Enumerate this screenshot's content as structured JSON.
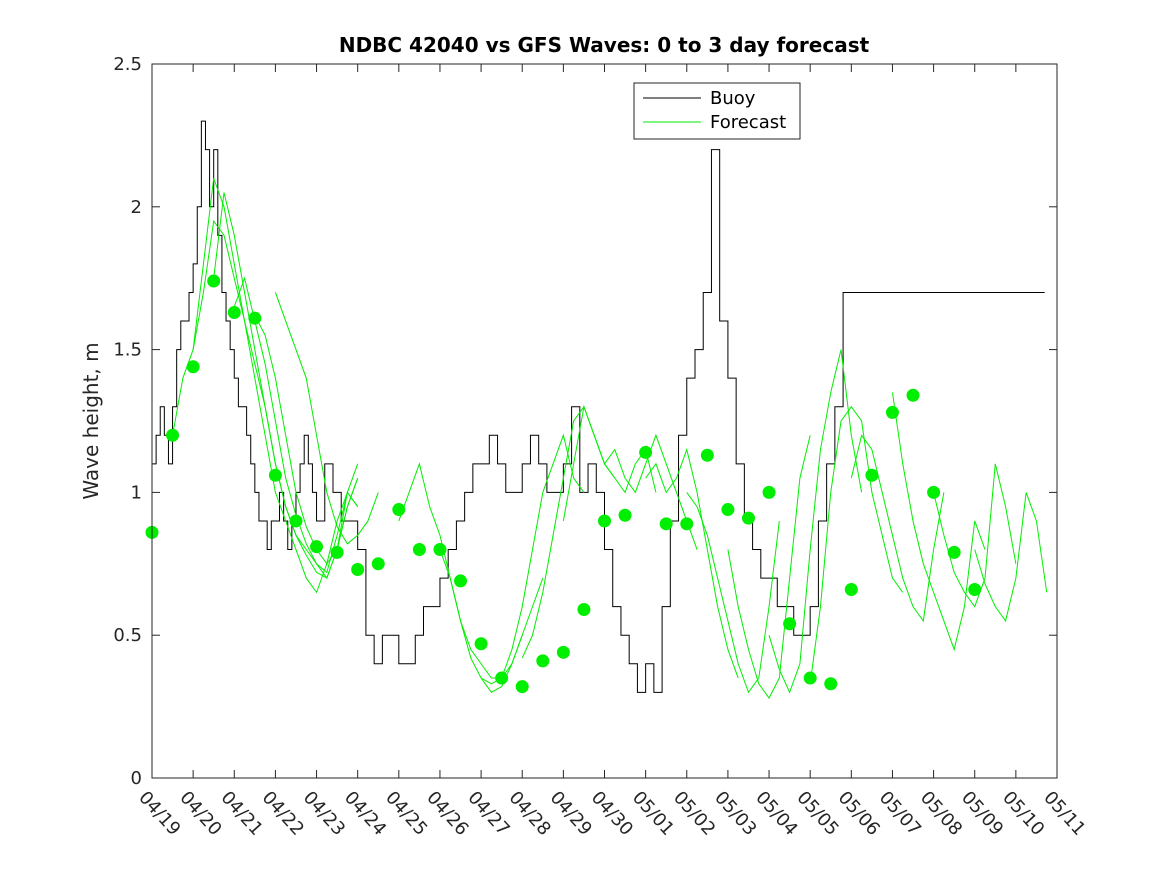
{
  "chart_data": {
    "type": "line",
    "title": "NDBC 42040 vs GFS Waves: 0 to 3 day forecast",
    "xlabel": "",
    "ylabel": "Wave height, m",
    "ylim": [
      0,
      2.5
    ],
    "xlim": [
      "04/19",
      "05/11"
    ],
    "x_ticks": [
      "04/19",
      "04/20",
      "04/21",
      "04/22",
      "04/23",
      "04/24",
      "04/25",
      "04/26",
      "04/27",
      "04/28",
      "04/29",
      "04/30",
      "05/01",
      "05/02",
      "05/03",
      "05/04",
      "05/05",
      "05/06",
      "05/07",
      "05/08",
      "05/09",
      "05/10",
      "05/11"
    ],
    "y_ticks": [
      "0",
      "0.5",
      "1",
      "1.5",
      "2",
      "2.5"
    ],
    "grid": false,
    "legend_position": "top-center",
    "colors": {
      "buoy": "#000000",
      "forecast": "#00ee00",
      "analysis_points": "#00ee00"
    },
    "series": [
      {
        "name": "Buoy",
        "x_days": [
          0,
          0.1,
          0.2,
          0.3,
          0.4,
          0.5,
          0.6,
          0.7,
          0.8,
          0.9,
          1.0,
          1.1,
          1.2,
          1.3,
          1.4,
          1.5,
          1.6,
          1.7,
          1.8,
          1.9,
          2.0,
          2.1,
          2.2,
          2.3,
          2.4,
          2.5,
          2.6,
          2.7,
          2.8,
          2.9,
          3.0,
          3.1,
          3.2,
          3.3,
          3.4,
          3.5,
          3.6,
          3.7,
          3.8,
          3.9,
          4.0,
          4.2,
          4.4,
          4.6,
          4.8,
          5.0,
          5.2,
          5.4,
          5.6,
          5.8,
          6.0,
          6.2,
          6.4,
          6.6,
          6.8,
          7.0,
          7.2,
          7.4,
          7.6,
          7.8,
          8.0,
          8.2,
          8.4,
          8.6,
          8.8,
          9.0,
          9.2,
          9.4,
          9.6,
          9.8,
          10.0,
          10.2,
          10.4,
          10.6,
          10.8,
          11.0,
          11.2,
          11.4,
          11.6,
          11.8,
          12.0,
          12.2,
          12.4,
          12.6,
          12.8,
          13.0,
          13.2,
          13.4,
          13.6,
          13.8,
          14.0,
          14.2,
          14.4,
          14.6,
          14.8,
          15.0,
          15.2,
          15.4,
          15.6,
          15.8,
          16.0,
          16.2,
          16.4,
          16.6,
          16.8,
          17.0,
          17.2,
          17.4,
          17.6,
          17.8,
          18.0,
          18.2,
          18.4,
          18.6,
          18.7,
          18.8,
          18.9,
          19.0,
          19.1,
          19.2,
          19.4,
          19.6,
          19.8,
          20.0,
          20.2,
          20.4,
          20.6,
          20.8,
          21.0,
          21.2,
          21.4,
          21.6,
          21.7
        ],
        "values": [
          1.1,
          1.2,
          1.3,
          1.2,
          1.1,
          1.3,
          1.5,
          1.6,
          1.6,
          1.7,
          1.8,
          2.0,
          2.3,
          2.2,
          2.0,
          2.2,
          1.9,
          1.7,
          1.6,
          1.5,
          1.4,
          1.3,
          1.3,
          1.2,
          1.1,
          1.0,
          0.9,
          0.9,
          0.8,
          0.9,
          0.9,
          1.0,
          0.9,
          0.8,
          0.9,
          1.0,
          1.1,
          1.2,
          1.1,
          1.0,
          0.9,
          1.1,
          1.0,
          0.9,
          0.9,
          0.8,
          0.5,
          0.4,
          0.5,
          0.5,
          0.4,
          0.4,
          0.5,
          0.6,
          0.6,
          0.7,
          0.8,
          0.9,
          1.0,
          1.1,
          1.1,
          1.2,
          1.1,
          1.0,
          1.0,
          1.1,
          1.2,
          1.1,
          1.0,
          1.0,
          1.1,
          1.3,
          1.0,
          1.1,
          1.0,
          0.8,
          0.6,
          0.5,
          0.4,
          0.3,
          0.4,
          0.3,
          0.6,
          0.9,
          1.2,
          1.4,
          1.5,
          1.7,
          2.2,
          1.6,
          1.4,
          1.1,
          0.9,
          0.8,
          0.7,
          0.7,
          0.6,
          0.6,
          0.5,
          0.5,
          0.6,
          0.9,
          1.1,
          1.3,
          1.7,
          1.7,
          1.7,
          1.7,
          1.7,
          1.7,
          1.7,
          1.7,
          1.7,
          1.7,
          1.7,
          1.7,
          1.7,
          1.7,
          1.7,
          1.7,
          1.7,
          1.7,
          1.7,
          1.7,
          1.7,
          1.7,
          1.7,
          1.7,
          1.7,
          1.7,
          1.7,
          1.7,
          1.7
        ]
      }
    ],
    "forecast_runs": [
      {
        "name": "Forecast",
        "start_day": 0.5,
        "values": [
          1.2,
          1.4,
          1.5,
          1.7,
          1.95,
          1.9,
          1.75,
          1.6,
          1.45,
          1.3,
          1.1,
          0.95,
          0.85,
          0.8,
          0.75,
          0.7,
          0.8,
          0.95,
          1.05
        ]
      },
      {
        "start_day": 1.0,
        "values": [
          1.5,
          1.8,
          2.1,
          2.0,
          1.8,
          1.6,
          1.4,
          1.2,
          1.0,
          0.9,
          0.8,
          0.7,
          0.65,
          0.75,
          0.9,
          1.0,
          0.95
        ]
      },
      {
        "start_day": 1.5,
        "values": [
          1.75,
          2.05,
          1.9,
          1.7,
          1.5,
          1.3,
          1.1,
          0.95,
          0.85,
          0.78,
          0.72,
          0.7,
          0.8,
          1.0,
          1.1
        ]
      },
      {
        "start_day": 2.0,
        "values": [
          1.65,
          1.75,
          1.6,
          1.45,
          1.25,
          1.05,
          0.92,
          0.82,
          0.75,
          0.72,
          0.85,
          1.0,
          0.95
        ]
      },
      {
        "start_day": 2.5,
        "values": [
          1.62,
          1.55,
          1.4,
          1.2,
          1.0,
          0.88,
          0.8,
          0.75,
          0.8,
          0.95,
          1.05
        ]
      },
      {
        "start_day": 3.0,
        "values": [
          1.7,
          1.6,
          1.5,
          1.4,
          1.2,
          1.0,
          0.88,
          0.82,
          0.85,
          0.9,
          1.0
        ]
      },
      {
        "start_day": 6.0,
        "values": [
          0.9,
          1.0,
          1.1,
          0.95,
          0.85,
          0.7,
          0.55,
          0.45,
          0.4,
          0.35,
          0.35,
          0.4,
          0.5
        ]
      },
      {
        "start_day": 7.0,
        "values": [
          0.8,
          0.7,
          0.55,
          0.42,
          0.35,
          0.3,
          0.32,
          0.4,
          0.5,
          0.6,
          0.7
        ]
      },
      {
        "start_day": 8.0,
        "values": [
          0.35,
          0.33,
          0.35,
          0.45,
          0.6,
          0.8,
          1.0,
          1.1,
          1.2,
          1.05,
          1.0
        ]
      },
      {
        "start_day": 9.0,
        "values": [
          0.42,
          0.5,
          0.65,
          0.85,
          1.05,
          1.25,
          1.3,
          1.2,
          1.1,
          1.05
        ]
      },
      {
        "start_day": 10.0,
        "values": [
          0.9,
          1.1,
          1.3,
          1.2,
          1.1,
          1.05,
          1.0,
          1.1,
          1.15,
          1.0
        ]
      },
      {
        "start_day": 11.0,
        "values": [
          1.1,
          1.15,
          1.05,
          1.0,
          1.1,
          1.2,
          1.1,
          1.0,
          0.9,
          0.8
        ]
      },
      {
        "start_day": 12.0,
        "values": [
          1.05,
          1.1,
          1.0,
          1.05,
          1.15,
          1.0,
          0.8,
          0.6,
          0.45,
          0.35
        ]
      },
      {
        "start_day": 13.0,
        "values": [
          1.0,
          0.95,
          0.85,
          0.7,
          0.55,
          0.4,
          0.3,
          0.35,
          0.6,
          0.9
        ]
      },
      {
        "start_day": 14.0,
        "values": [
          0.8,
          0.6,
          0.45,
          0.33,
          0.28,
          0.35,
          0.7,
          1.05,
          1.2
        ]
      },
      {
        "start_day": 15.0,
        "values": [
          0.5,
          0.38,
          0.3,
          0.4,
          0.8,
          1.15,
          1.35,
          1.5,
          1.2,
          1.0
        ]
      },
      {
        "start_day": 16.0,
        "values": [
          0.33,
          0.6,
          1.0,
          1.25,
          1.3,
          1.25,
          1.0,
          0.85,
          0.7,
          0.65
        ]
      },
      {
        "start_day": 17.0,
        "values": [
          1.05,
          1.2,
          1.15,
          1.0,
          0.85,
          0.7,
          0.6,
          0.55,
          0.8,
          1.0
        ]
      },
      {
        "start_day": 18.0,
        "values": [
          1.35,
          1.1,
          0.9,
          0.75,
          0.65,
          0.55,
          0.45,
          0.6,
          0.9,
          0.8
        ]
      },
      {
        "start_day": 19.0,
        "values": [
          1.0,
          0.85,
          0.72,
          0.65,
          0.6,
          0.7,
          1.1,
          0.95,
          0.75
        ]
      },
      {
        "start_day": 20.0,
        "values": [
          0.8,
          0.68,
          0.6,
          0.55,
          0.7,
          1.0,
          0.9,
          0.65
        ]
      }
    ],
    "analysis_points": {
      "x_days": [
        0,
        0.5,
        1.0,
        1.5,
        2.0,
        2.5,
        3.0,
        3.5,
        4.0,
        4.5,
        5.0,
        5.5,
        6.0,
        6.5,
        7.0,
        7.5,
        8.0,
        8.5,
        9.0,
        9.5,
        10.0,
        10.5,
        11.0,
        11.5,
        12.0,
        12.5,
        13.0,
        13.5,
        14.0,
        14.5,
        15.0,
        15.5,
        16.0,
        16.5,
        17.0,
        17.5,
        18.0,
        18.5,
        19.0,
        19.5,
        20.0
      ],
      "values": [
        0.86,
        1.2,
        1.44,
        1.74,
        1.63,
        1.61,
        1.06,
        0.9,
        0.81,
        0.79,
        0.73,
        0.75,
        0.94,
        0.8,
        0.8,
        0.69,
        0.47,
        0.35,
        0.32,
        0.41,
        0.44,
        0.59,
        0.9,
        0.92,
        1.14,
        0.89,
        0.89,
        1.13,
        0.94,
        0.91,
        1.0,
        0.54,
        0.35,
        0.33,
        0.66,
        1.06,
        1.28,
        1.34,
        1.0,
        0.79,
        0.66
      ]
    }
  },
  "legend": {
    "buoy_label": "Buoy",
    "forecast_label": "Forecast"
  }
}
